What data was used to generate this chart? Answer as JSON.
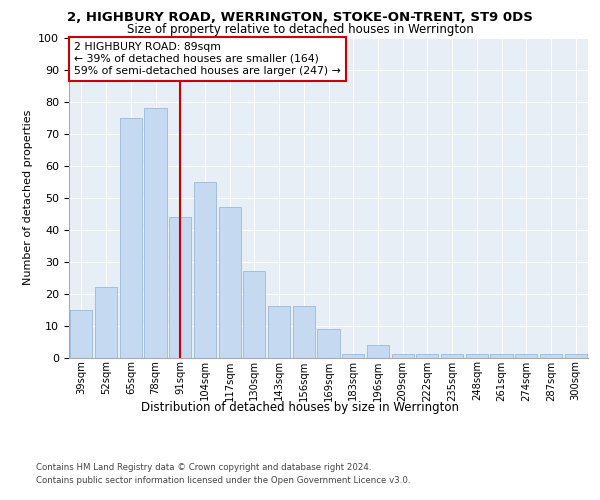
{
  "title1": "2, HIGHBURY ROAD, WERRINGTON, STOKE-ON-TRENT, ST9 0DS",
  "title2": "Size of property relative to detached houses in Werrington",
  "xlabel": "Distribution of detached houses by size in Werrington",
  "ylabel": "Number of detached properties",
  "categories": [
    "39sqm",
    "52sqm",
    "65sqm",
    "78sqm",
    "91sqm",
    "104sqm",
    "117sqm",
    "130sqm",
    "143sqm",
    "156sqm",
    "169sqm",
    "183sqm",
    "196sqm",
    "209sqm",
    "222sqm",
    "235sqm",
    "248sqm",
    "261sqm",
    "274sqm",
    "287sqm",
    "300sqm"
  ],
  "values": [
    15,
    22,
    75,
    78,
    44,
    55,
    47,
    27,
    16,
    16,
    9,
    1,
    4,
    1,
    1,
    1,
    1,
    1,
    1,
    1,
    1
  ],
  "bar_color": "#c5d9f0",
  "bar_edge_color": "#9ab8d8",
  "ref_line_x": 4,
  "ref_line_color": "#cc0000",
  "annotation_text": "2 HIGHBURY ROAD: 89sqm\n← 39% of detached houses are smaller (164)\n59% of semi-detached houses are larger (247) →",
  "annotation_box_color": "#cc0000",
  "ylim": [
    0,
    100
  ],
  "yticks": [
    0,
    10,
    20,
    30,
    40,
    50,
    60,
    70,
    80,
    90,
    100
  ],
  "bg_color": "#e8eef6",
  "footer1": "Contains HM Land Registry data © Crown copyright and database right 2024.",
  "footer2": "Contains public sector information licensed under the Open Government Licence v3.0."
}
